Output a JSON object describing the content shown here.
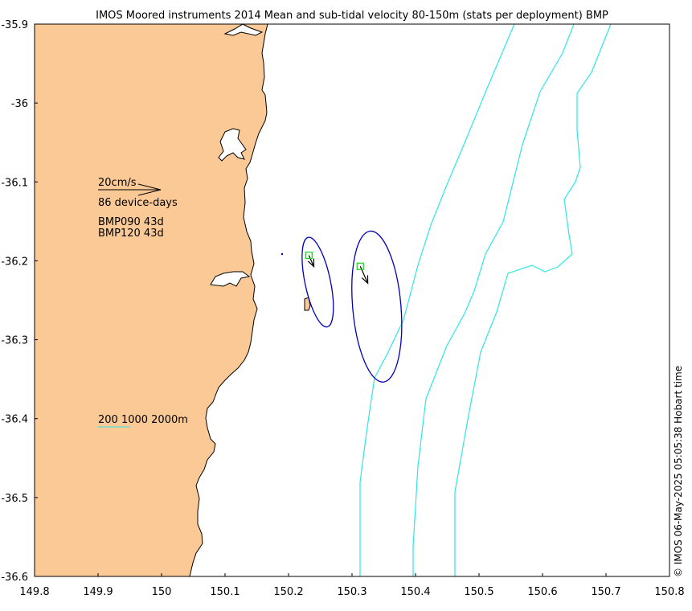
{
  "title": "IMOS Moored instruments 2014 Mean and sub-tidal velocity 80-150m (stats per deployment) BMP",
  "timestamp": "© IMOS 06-May-2025 05:05:38 Hobart time",
  "axes": {
    "x_ticks": [
      "149.8",
      "149.9",
      "150",
      "150.1",
      "150.2",
      "150.3",
      "150.4",
      "150.5",
      "150.6",
      "150.7",
      "150.8"
    ],
    "y_ticks": [
      "-35.9",
      "-36",
      "-36.1",
      "-36.2",
      "-36.3",
      "-36.4",
      "-36.5",
      "-36.6"
    ],
    "xlim": [
      149.8,
      150.8
    ],
    "ylim": [
      -36.6,
      -35.9
    ]
  },
  "legend": {
    "scale_label": "20cm/s",
    "device_days": "86 device-days",
    "deployments": [
      "BMP090 43d",
      "BMP120 43d"
    ],
    "isobaths": "200 1000 2000m"
  },
  "colors": {
    "land": "#fbc995",
    "isobath": "#2ee6e6",
    "ellipse": "#0000bb",
    "arrow": "#000000",
    "station": "#22cc22",
    "coast": "#000000"
  },
  "chart_data": {
    "type": "map",
    "moorings": [
      {
        "lon": 150.232,
        "lat": -36.193,
        "u": 0.016,
        "v": -0.036,
        "ellipse": {
          "lon": 150.246,
          "lat": -36.227,
          "semi_lon": 0.02,
          "semi_lat": 0.058,
          "angle_deg": -12
        }
      },
      {
        "lon": 150.313,
        "lat": -36.207,
        "u": 0.024,
        "v": -0.054,
        "ellipse": {
          "lon": 150.339,
          "lat": -36.258,
          "semi_lon": 0.038,
          "semi_lat": 0.096,
          "angle_deg": -5
        }
      }
    ]
  }
}
